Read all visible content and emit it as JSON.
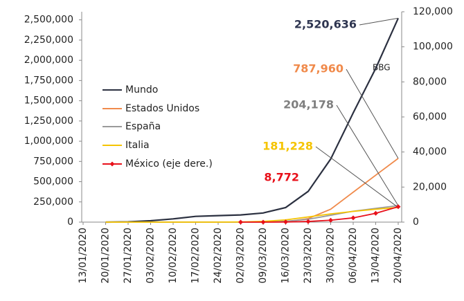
{
  "chart_data": {
    "type": "line",
    "categories": [
      "13/01/2020",
      "20/01/2020",
      "27/01/2020",
      "03/02/2020",
      "10/02/2020",
      "17/02/2020",
      "24/02/2020",
      "02/03/2020",
      "09/03/2020",
      "16/03/2020",
      "23/03/2020",
      "30/03/2020",
      "06/04/2020",
      "13/04/2020",
      "20/04/2020"
    ],
    "series": [
      {
        "name": "Mundo",
        "color": "#2b3040",
        "label_color": "#2e3550",
        "values": [
          null,
          300,
          3000,
          17000,
          40000,
          71000,
          80000,
          89000,
          113000,
          180000,
          380000,
          780000,
          1350000,
          1900000,
          2520636
        ],
        "value_labels": [
          null,
          null,
          null,
          null,
          null,
          null,
          null,
          null,
          null,
          null,
          null,
          null,
          null,
          null,
          "2,520,636"
        ]
      },
      {
        "name": "Estados Unidos",
        "color": "#f08a4b",
        "label_color": "#f08a4b",
        "values": [
          null,
          1,
          5,
          11,
          12,
          15,
          53,
          100,
          600,
          4600,
          44000,
          160000,
          370000,
          580000,
          787960
        ],
        "value_labels": [
          null,
          null,
          null,
          null,
          null,
          null,
          null,
          null,
          null,
          null,
          null,
          null,
          null,
          null,
          "787,960"
        ]
      },
      {
        "name": "España",
        "color": "#9a9a9a",
        "label_color": "#7f7f7f",
        "values": [
          null,
          0,
          0,
          1,
          2,
          2,
          2,
          120,
          1200,
          10000,
          35000,
          85000,
          135000,
          170000,
          204178
        ],
        "value_labels": [
          null,
          null,
          null,
          null,
          null,
          null,
          null,
          null,
          null,
          null,
          null,
          null,
          null,
          null,
          "204,178"
        ]
      },
      {
        "name": "Italia",
        "color": "#f5c400",
        "label_color": "#f5c400",
        "values": [
          null,
          0,
          0,
          2,
          3,
          3,
          229,
          2036,
          9172,
          27980,
          63927,
          101739,
          132547,
          159516,
          181228
        ],
        "value_labels": [
          null,
          null,
          null,
          null,
          null,
          null,
          null,
          null,
          null,
          null,
          null,
          null,
          null,
          null,
          "181,228"
        ]
      },
      {
        "name": "México (eje dere.)",
        "color": "#e8101a",
        "label_color": "#e8101a",
        "axis": "y2",
        "marker": "diamond",
        "values": [
          null,
          null,
          null,
          null,
          null,
          null,
          null,
          5,
          7,
          82,
          367,
          1094,
          2439,
          5014,
          8772
        ],
        "value_labels": [
          null,
          null,
          null,
          null,
          null,
          null,
          null,
          null,
          null,
          null,
          null,
          null,
          null,
          null,
          "8,772"
        ]
      }
    ],
    "source": "BBG",
    "ylim": [
      0,
      2600000
    ],
    "yticks": [
      0,
      {
        "value": 250000,
        "label": "250,000"
      },
      {
        "value": 500000,
        "label": "500,000"
      },
      {
        "value": 750000,
        "label": "750,000"
      },
      {
        "value": 1000000,
        "label": "1,000,000"
      },
      {
        "value": 1250000,
        "label": "1,250,000"
      },
      {
        "value": 1500000,
        "label": "1,500,000"
      },
      {
        "value": 1750000,
        "label": "1,750,000"
      },
      {
        "value": 2000000,
        "label": "2,000,000"
      },
      {
        "value": 2250000,
        "label": "2,250,000"
      },
      {
        "value": 2500000,
        "label": "2,500,000"
      }
    ],
    "y2lim": [
      0,
      120000
    ],
    "y2ticks": [
      0,
      {
        "value": 20000,
        "label": "20,000"
      },
      {
        "value": 40000,
        "label": "40,000"
      },
      {
        "value": 60000,
        "label": "60,000"
      },
      {
        "value": 80000,
        "label": "80,000"
      },
      {
        "value": 100000,
        "label": "100,000"
      },
      {
        "value": 120000,
        "label": "120,000"
      }
    ],
    "legend": "left",
    "grid": false
  }
}
